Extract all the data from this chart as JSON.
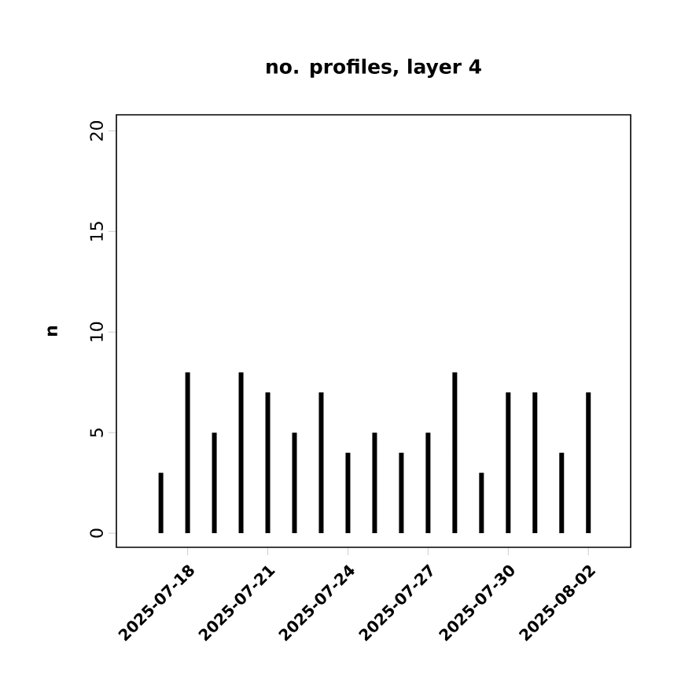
{
  "chart_data": {
    "type": "bar",
    "title": "no. profiles, layer 4",
    "ylabel": "n",
    "x": [
      "2025-07-17",
      "2025-07-18",
      "2025-07-19",
      "2025-07-20",
      "2025-07-21",
      "2025-07-22",
      "2025-07-23",
      "2025-07-24",
      "2025-07-25",
      "2025-07-26",
      "2025-07-27",
      "2025-07-28",
      "2025-07-29",
      "2025-07-30",
      "2025-07-31",
      "2025-08-01",
      "2025-08-02"
    ],
    "values": [
      3,
      8,
      5,
      8,
      7,
      5,
      7,
      4,
      5,
      4,
      5,
      8,
      3,
      7,
      7,
      4,
      7
    ],
    "color": "#000000",
    "xlim": [
      "2025-07-15T08:00",
      "2025-08-03T14:00"
    ],
    "xticks": [
      "2025-07-18",
      "2025-07-21",
      "2025-07-24",
      "2025-07-27",
      "2025-07-30",
      "2025-08-02"
    ],
    "ylim": [
      -0.7,
      20.8
    ],
    "yticks": [
      0,
      5,
      10,
      15,
      20
    ]
  }
}
